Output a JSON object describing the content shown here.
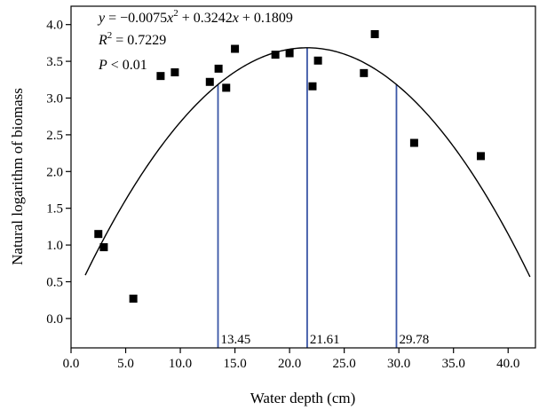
{
  "chart_data": {
    "type": "scatter",
    "title": "",
    "xlabel": "Water depth (cm)",
    "ylabel": "Natural logarithm of biomass",
    "xlim": [
      0,
      42.5
    ],
    "ylim": [
      -0.4,
      4.25
    ],
    "xticks": [
      0,
      5,
      10,
      15,
      20,
      25,
      30,
      35,
      40
    ],
    "xtick_labels": [
      "0.0",
      "5.0",
      "10.0",
      "15.0",
      "20.0",
      "25.0",
      "30.0",
      "35.0",
      "40.0"
    ],
    "yticks": [
      0,
      0.5,
      1,
      1.5,
      2,
      2.5,
      3,
      3.5,
      4
    ],
    "ytick_labels": [
      "0.0",
      "0.5",
      "1.0",
      "1.5",
      "2.0",
      "2.5",
      "3.0",
      "3.5",
      "4.0"
    ],
    "grid": false,
    "points": [
      {
        "x": 2.5,
        "y": 1.15
      },
      {
        "x": 3.0,
        "y": 0.97
      },
      {
        "x": 5.7,
        "y": 0.27
      },
      {
        "x": 8.2,
        "y": 3.3
      },
      {
        "x": 9.5,
        "y": 3.35
      },
      {
        "x": 12.7,
        "y": 3.22
      },
      {
        "x": 13.5,
        "y": 3.4
      },
      {
        "x": 14.2,
        "y": 3.14
      },
      {
        "x": 15.0,
        "y": 3.67
      },
      {
        "x": 18.7,
        "y": 3.59
      },
      {
        "x": 20.0,
        "y": 3.61
      },
      {
        "x": 22.1,
        "y": 3.16
      },
      {
        "x": 22.6,
        "y": 3.51
      },
      {
        "x": 26.8,
        "y": 3.34
      },
      {
        "x": 27.8,
        "y": 3.87
      },
      {
        "x": 31.4,
        "y": 2.39
      },
      {
        "x": 37.5,
        "y": 2.21
      }
    ],
    "fit": {
      "coefficients": {
        "a": -0.0075,
        "b": 0.3242,
        "c": 0.1809
      },
      "x_range": [
        1.3,
        42.0
      ],
      "color": "#000000"
    },
    "reference_lines": [
      {
        "x": 13.45,
        "label": "13.45",
        "color": "#3a56a6"
      },
      {
        "x": 21.61,
        "label": "21.61",
        "color": "#3a56a6"
      },
      {
        "x": 29.78,
        "label": "29.78",
        "color": "#3a56a6"
      }
    ],
    "annotations": {
      "equation": {
        "y": "y",
        "eq": " = −0.0075",
        "x1": "x",
        "sq": "2",
        "mid": " + 0.3242",
        "x2": "x",
        "tail": " + 0.1809"
      },
      "r2": {
        "r": "R",
        "sq": "2",
        "val": " = 0.7229"
      },
      "p": {
        "p": "P",
        "val": " < 0.01"
      }
    },
    "marker_color": "#000000"
  }
}
